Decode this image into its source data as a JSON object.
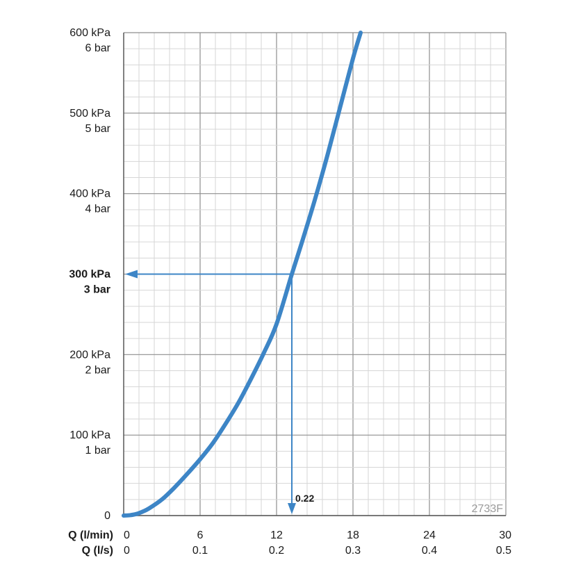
{
  "chart_data": {
    "type": "line",
    "x_axes": [
      {
        "label": "Q (l/min)",
        "ticks": [
          "0",
          "6",
          "12",
          "18",
          "24",
          "30"
        ],
        "range": [
          0,
          30
        ]
      },
      {
        "label": "Q (l/s)",
        "ticks": [
          "0",
          "0.1",
          "0.2",
          "0.3",
          "0.4",
          "0.5"
        ],
        "range": [
          0,
          0.5
        ]
      }
    ],
    "y_axis": {
      "range": [
        0,
        600
      ],
      "unit": "kPa",
      "ticks": [
        {
          "value": 0,
          "kpa": "0",
          "bar": "",
          "bold": false
        },
        {
          "value": 100,
          "kpa": "100 kPa",
          "bar": "1 bar",
          "bold": false
        },
        {
          "value": 200,
          "kpa": "200 kPa",
          "bar": "2 bar",
          "bold": false
        },
        {
          "value": 300,
          "kpa": "300 kPa",
          "bar": "3 bar",
          "bold": true
        },
        {
          "value": 400,
          "kpa": "400 kPa",
          "bar": "4 bar",
          "bold": false
        },
        {
          "value": 500,
          "kpa": "500 kPa",
          "bar": "5 bar",
          "bold": false
        },
        {
          "value": 600,
          "kpa": "600 kPa",
          "bar": "6 bar",
          "bold": false
        }
      ]
    },
    "grid": true,
    "series": [
      {
        "x": [
          0,
          0.5,
          1.0,
          1.5,
          2,
          3,
          4,
          5,
          6,
          7,
          8,
          9,
          10,
          11,
          12,
          13.2,
          14,
          15,
          16,
          17,
          18,
          18.6
        ],
        "y": [
          0,
          0.5,
          2,
          5,
          9,
          20,
          35,
          52,
          70,
          90,
          114,
          140,
          170,
          202,
          238,
          300,
          340,
          392,
          448,
          508,
          568,
          600
        ],
        "color": "#3d85c6"
      }
    ],
    "annotation": {
      "label": "0.22",
      "x": 13.2,
      "y": 300,
      "color": "#3d85c6"
    },
    "watermark": "2733F"
  }
}
